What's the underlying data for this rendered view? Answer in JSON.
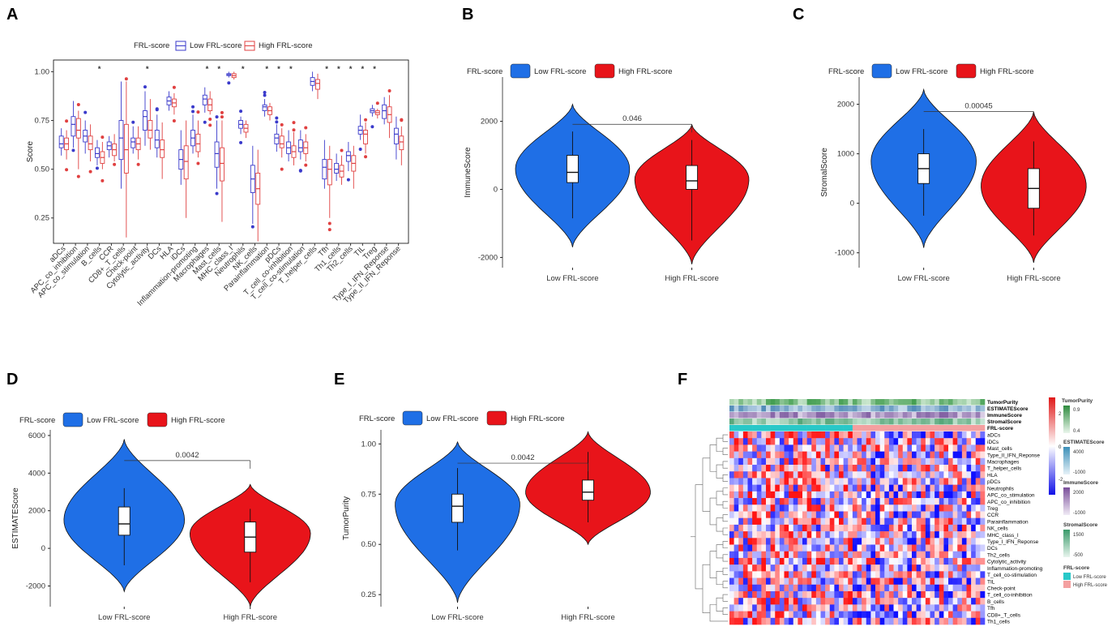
{
  "panels": {
    "A": "A",
    "B": "B",
    "C": "C",
    "D": "D",
    "E": "E",
    "F": "F"
  },
  "colors": {
    "low": "#1f6fe6",
    "high": "#e8141a",
    "low_box": "#3a3acb",
    "high_box": "#e04040",
    "track_low": "#28c8c8",
    "track_high": "#f4a0a0"
  },
  "panelA": {
    "legend_title": "FRL-score",
    "legend_low": "Low FRL-score",
    "legend_high": "High FRL-score",
    "ylabel": "Score",
    "yticks": [
      "0.25",
      "0.50",
      "0.75",
      "1.00"
    ]
  },
  "chart_data": [
    {
      "panel": "A",
      "type": "box",
      "title": "",
      "ylabel": "Score",
      "ylim": [
        0.12,
        1.06
      ],
      "legend": "top",
      "categories": [
        "aDCs",
        "APC_co_inhibition",
        "APC_co_stimulation",
        "B_cells",
        "CCR",
        "CD8+_T_cells",
        "Check-point",
        "Cytolytic_activity",
        "DCs",
        "HLA",
        "iDCs",
        "Inflammation-promoting",
        "Macrophages",
        "Mast_cells",
        "MHC_class_I",
        "Neutrophils",
        "NK_cells",
        "Parainflammation",
        "pDCs",
        "T_cell_co-inhibition",
        "T_cell_co-stimulation",
        "T_helper_cells",
        "Tfh",
        "Th1_cells",
        "Th2_cells",
        "TIL",
        "Treg",
        "Type_I_IFN_Reponse",
        "Type_II_IFN_Reponse"
      ],
      "significance": [
        "",
        "",
        "",
        "*",
        "",
        "",
        "",
        "*",
        "",
        "",
        "",
        "",
        "*",
        "*",
        "",
        "*",
        "",
        "*",
        "*",
        "*",
        "",
        "",
        "*",
        "*",
        "*",
        "*",
        "*",
        "",
        ""
      ],
      "series": [
        {
          "name": "Low FRL-score",
          "stats": [
            [
              0.57,
              0.61,
              0.63,
              0.67,
              0.71
            ],
            [
              0.61,
              0.67,
              0.73,
              0.77,
              0.85
            ],
            [
              0.58,
              0.64,
              0.67,
              0.7,
              0.75
            ],
            [
              0.52,
              0.56,
              0.58,
              0.61,
              0.65
            ],
            [
              0.56,
              0.6,
              0.62,
              0.64,
              0.67
            ],
            [
              0.4,
              0.55,
              0.66,
              0.75,
              0.95
            ],
            [
              0.58,
              0.61,
              0.64,
              0.66,
              0.72
            ],
            [
              0.62,
              0.7,
              0.77,
              0.8,
              0.9
            ],
            [
              0.56,
              0.61,
              0.65,
              0.7,
              0.78
            ],
            [
              0.8,
              0.83,
              0.85,
              0.87,
              0.9
            ],
            [
              0.42,
              0.5,
              0.55,
              0.6,
              0.7
            ],
            [
              0.58,
              0.62,
              0.66,
              0.7,
              0.78
            ],
            [
              0.79,
              0.83,
              0.86,
              0.88,
              0.92
            ],
            [
              0.4,
              0.51,
              0.58,
              0.64,
              0.75
            ],
            [
              0.97,
              0.98,
              0.985,
              0.99,
              1.0
            ],
            [
              0.68,
              0.71,
              0.73,
              0.75,
              0.77
            ],
            [
              0.22,
              0.38,
              0.45,
              0.52,
              0.62
            ],
            [
              0.77,
              0.8,
              0.82,
              0.83,
              0.86
            ],
            [
              0.59,
              0.63,
              0.66,
              0.68,
              0.73
            ],
            [
              0.54,
              0.58,
              0.61,
              0.64,
              0.7
            ],
            [
              0.55,
              0.59,
              0.61,
              0.65,
              0.7
            ],
            [
              0.9,
              0.93,
              0.95,
              0.97,
              1.0
            ],
            [
              0.4,
              0.45,
              0.51,
              0.55,
              0.65
            ],
            [
              0.44,
              0.48,
              0.5,
              0.53,
              0.58
            ],
            [
              0.49,
              0.54,
              0.57,
              0.59,
              0.64
            ],
            [
              0.65,
              0.68,
              0.7,
              0.72,
              0.78
            ],
            [
              0.77,
              0.79,
              0.8,
              0.81,
              0.83
            ],
            [
              0.73,
              0.76,
              0.8,
              0.83,
              0.87
            ],
            [
              0.55,
              0.63,
              0.68,
              0.71,
              0.77
            ]
          ]
        },
        {
          "name": "High FRL-score",
          "stats": [
            [
              0.55,
              0.6,
              0.63,
              0.66,
              0.7
            ],
            [
              0.5,
              0.66,
              0.7,
              0.76,
              0.8
            ],
            [
              0.54,
              0.6,
              0.63,
              0.67,
              0.73
            ],
            [
              0.5,
              0.53,
              0.56,
              0.59,
              0.64
            ],
            [
              0.54,
              0.57,
              0.6,
              0.63,
              0.68
            ],
            [
              0.15,
              0.48,
              0.6,
              0.73,
              0.95
            ],
            [
              0.55,
              0.6,
              0.63,
              0.66,
              0.72
            ],
            [
              0.6,
              0.66,
              0.7,
              0.75,
              0.86
            ],
            [
              0.45,
              0.56,
              0.6,
              0.65,
              0.74
            ],
            [
              0.78,
              0.82,
              0.84,
              0.86,
              0.89
            ],
            [
              0.25,
              0.45,
              0.54,
              0.62,
              0.75
            ],
            [
              0.56,
              0.59,
              0.63,
              0.68,
              0.75
            ],
            [
              0.78,
              0.8,
              0.83,
              0.86,
              0.9
            ],
            [
              0.23,
              0.44,
              0.53,
              0.61,
              0.75
            ],
            [
              0.96,
              0.97,
              0.98,
              0.99,
              1.0
            ],
            [
              0.66,
              0.69,
              0.71,
              0.73,
              0.75
            ],
            [
              0.13,
              0.32,
              0.4,
              0.48,
              0.6
            ],
            [
              0.75,
              0.78,
              0.8,
              0.82,
              0.84
            ],
            [
              0.56,
              0.61,
              0.63,
              0.67,
              0.71
            ],
            [
              0.52,
              0.56,
              0.59,
              0.62,
              0.69
            ],
            [
              0.54,
              0.58,
              0.61,
              0.64,
              0.68
            ],
            [
              0.86,
              0.91,
              0.94,
              0.96,
              0.99
            ],
            [
              0.25,
              0.42,
              0.5,
              0.55,
              0.62
            ],
            [
              0.42,
              0.46,
              0.49,
              0.52,
              0.57
            ],
            [
              0.4,
              0.49,
              0.53,
              0.57,
              0.62
            ],
            [
              0.58,
              0.63,
              0.68,
              0.7,
              0.74
            ],
            [
              0.76,
              0.78,
              0.79,
              0.8,
              0.81
            ],
            [
              0.66,
              0.74,
              0.78,
              0.82,
              0.88
            ],
            [
              0.52,
              0.6,
              0.64,
              0.67,
              0.72
            ]
          ]
        }
      ]
    },
    {
      "panel": "B",
      "type": "violin",
      "ylabel": "ImmuneScore",
      "categories": [
        "Low FRL-score",
        "High FRL-score"
      ],
      "ylim": [
        -2300,
        3300
      ],
      "yticks": [
        "-2000",
        "0",
        "2000"
      ],
      "pvalue": "0.046",
      "series": [
        {
          "name": "Low FRL-score",
          "min": -1700,
          "max": 2500,
          "q1": 200,
          "median": 500,
          "q3": 1000,
          "peak": 600,
          "whisker_low": -850,
          "whisker_high": 1700
        },
        {
          "name": "High FRL-score",
          "min": -2200,
          "max": 1900,
          "q1": 0,
          "median": 250,
          "q3": 700,
          "peak": 300,
          "whisker_low": -1500,
          "whisker_high": 1450
        }
      ]
    },
    {
      "panel": "C",
      "type": "violin",
      "ylabel": "StromalScore",
      "categories": [
        "Low FRL-score",
        "High FRL-score"
      ],
      "ylim": [
        -1300,
        2550
      ],
      "yticks": [
        "-1000",
        "0",
        "1000",
        "2000"
      ],
      "pvalue": "0.00045",
      "series": [
        {
          "name": "Low FRL-score",
          "min": -900,
          "max": 2300,
          "q1": 400,
          "median": 700,
          "q3": 1000,
          "peak": 850,
          "whisker_low": -250,
          "whisker_high": 1500
        },
        {
          "name": "High FRL-score",
          "min": -1200,
          "max": 1850,
          "q1": -100,
          "median": 300,
          "q3": 700,
          "peak": 350,
          "whisker_low": -650,
          "whisker_high": 1250
        }
      ]
    },
    {
      "panel": "D",
      "type": "violin",
      "ylabel": "ESTIMATEScore",
      "categories": [
        "Low FRL-score",
        "High FRL-score"
      ],
      "ylim": [
        -3100,
        6300
      ],
      "yticks": [
        "-2000",
        "0",
        "2000",
        "4000",
        "6000"
      ],
      "pvalue": "0.0042",
      "series": [
        {
          "name": "Low FRL-score",
          "min": -2300,
          "max": 5800,
          "q1": 700,
          "median": 1300,
          "q3": 2200,
          "peak": 1500,
          "whisker_low": -900,
          "whisker_high": 3200
        },
        {
          "name": "High FRL-score",
          "min": -3100,
          "max": 3400,
          "q1": -200,
          "median": 600,
          "q3": 1400,
          "peak": 800,
          "whisker_low": -1800,
          "whisker_high": 2100
        }
      ]
    },
    {
      "panel": "E",
      "type": "violin",
      "ylabel": "TumorPurity",
      "categories": [
        "Low FRL-score",
        "High FRL-score"
      ],
      "ylim": [
        0.19,
        1.07
      ],
      "yticks": [
        "0.25",
        "0.50",
        "0.75",
        "1.00"
      ],
      "pvalue": "0.0042",
      "series": [
        {
          "name": "Low FRL-score",
          "min": 0.21,
          "max": 1.01,
          "q1": 0.61,
          "median": 0.69,
          "q3": 0.75,
          "peak": 0.7,
          "whisker_low": 0.47,
          "whisker_high": 0.88
        },
        {
          "name": "High FRL-score",
          "min": 0.5,
          "max": 1.06,
          "q1": 0.72,
          "median": 0.76,
          "q3": 0.82,
          "peak": 0.76,
          "whisker_low": 0.61,
          "whisker_high": 0.96
        }
      ]
    },
    {
      "panel": "F",
      "type": "heatmap",
      "rows": [
        "aDCs",
        "iDCs",
        "Mast_cells",
        "Type_II_IFN_Reponse",
        "Macrophages",
        "T_helper_cells",
        "HLA",
        "pDCs",
        "Neutrophils",
        "APC_co_stimulation",
        "APC_co_inhibition",
        "Treg",
        "CCR",
        "Parainflammation",
        "NK_cells",
        "MHC_class_I",
        "Type_I_IFN_Reponse",
        "DCs",
        "Th2_cells",
        "Cytolytic_activity",
        "Inflammation-promoting",
        "T_cell_co-stimulation",
        "TIL",
        "Check-point",
        "T_cell_co-inhibition",
        "B_cells",
        "Tfh",
        "CD8+_T_cells",
        "Th1_cells"
      ],
      "annotation_tracks": [
        "TumorPurity",
        "ESTIMATEScore",
        "ImmuneScore",
        "StromalScore",
        "FRL-score"
      ],
      "color_scale": {
        "min": -2,
        "mid": 0,
        "max": 2
      }
    }
  ],
  "panelBE": {
    "legend_title": "FRL-score",
    "legend_low": "Low FRL-score",
    "legend_high": "High FRL-score",
    "xlab_low": "Low FRL-score",
    "xlab_high": "High FRL-score"
  },
  "panelF": {
    "rows": [
      "aDCs",
      "iDCs",
      "Mast_cells",
      "Type_II_IFN_Reponse",
      "Macrophages",
      "T_helper_cells",
      "HLA",
      "pDCs",
      "Neutrophils",
      "APC_co_stimulation",
      "APC_co_inhibition",
      "Treg",
      "CCR",
      "Parainflammation",
      "NK_cells",
      "MHC_class_I",
      "Type_I_IFN_Reponse",
      "DCs",
      "Th2_cells",
      "Cytolytic_activity",
      "Inflammation-promoting",
      "T_cell_co-stimulation",
      "TIL",
      "Check-point",
      "T_cell_co-inhibition",
      "B_cells",
      "Tfh",
      "CD8+_T_cells",
      "Th1_cells"
    ],
    "tracks": [
      "TumorPurity",
      "ESTIMATEScore",
      "ImmuneScore",
      "StromalScore",
      "FRL-score"
    ],
    "scale_ticks": [
      "2",
      "0",
      "-2"
    ],
    "keys": {
      "TumorPurity": {
        "title": "TumorPurity",
        "ticks": [
          "0.9",
          "0.4"
        ]
      },
      "ESTIMATEScore": {
        "title": "ESTIMATEScore",
        "ticks": [
          "4000",
          "-1000"
        ]
      },
      "ImmuneScore": {
        "title": "ImmuneScore",
        "ticks": [
          "2000",
          "-1000"
        ]
      },
      "StromalScore": {
        "title": "StromalScore",
        "ticks": [
          "1500",
          "-500"
        ]
      },
      "FRL": {
        "title": "FRL-score",
        "low": "Low FRL-score",
        "high": "High FRL-score"
      }
    }
  }
}
